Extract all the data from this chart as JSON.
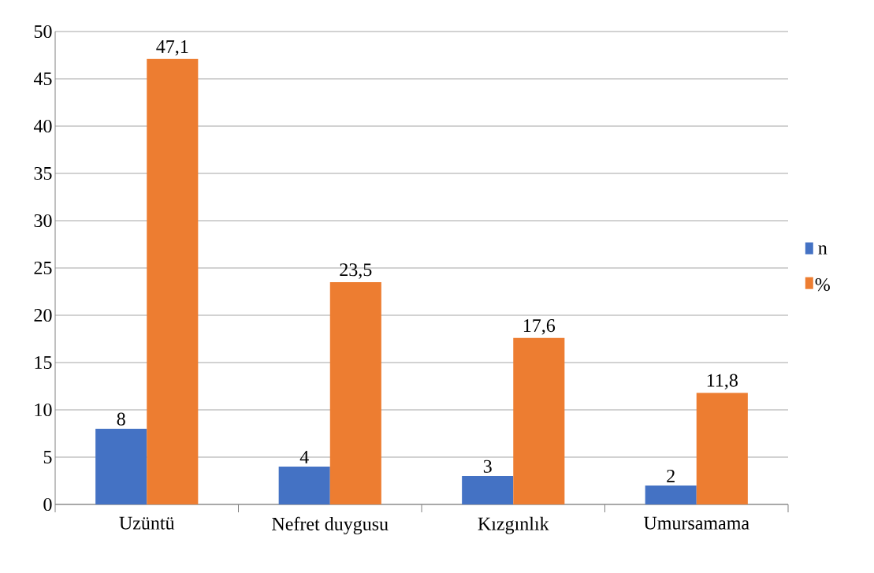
{
  "chart_data": {
    "type": "bar",
    "categories": [
      "Uzüntü",
      "Nefret duygusu",
      "Kızgınlık",
      "Umursamama"
    ],
    "series": [
      {
        "name": "n",
        "color": "#4472c4",
        "values": [
          8,
          4,
          3,
          2
        ],
        "value_labels": [
          "8",
          "4",
          "3",
          "2"
        ]
      },
      {
        "name": "%",
        "color": "#ed7d31",
        "values": [
          47.1,
          23.5,
          17.6,
          11.8
        ],
        "value_labels": [
          "47,1",
          "23,5",
          "17,6",
          "11,8"
        ]
      }
    ],
    "ylim": [
      0,
      50
    ],
    "yticks": [
      0,
      5,
      10,
      15,
      20,
      25,
      30,
      35,
      40,
      45,
      50
    ],
    "grid": "y",
    "legend": "right"
  }
}
